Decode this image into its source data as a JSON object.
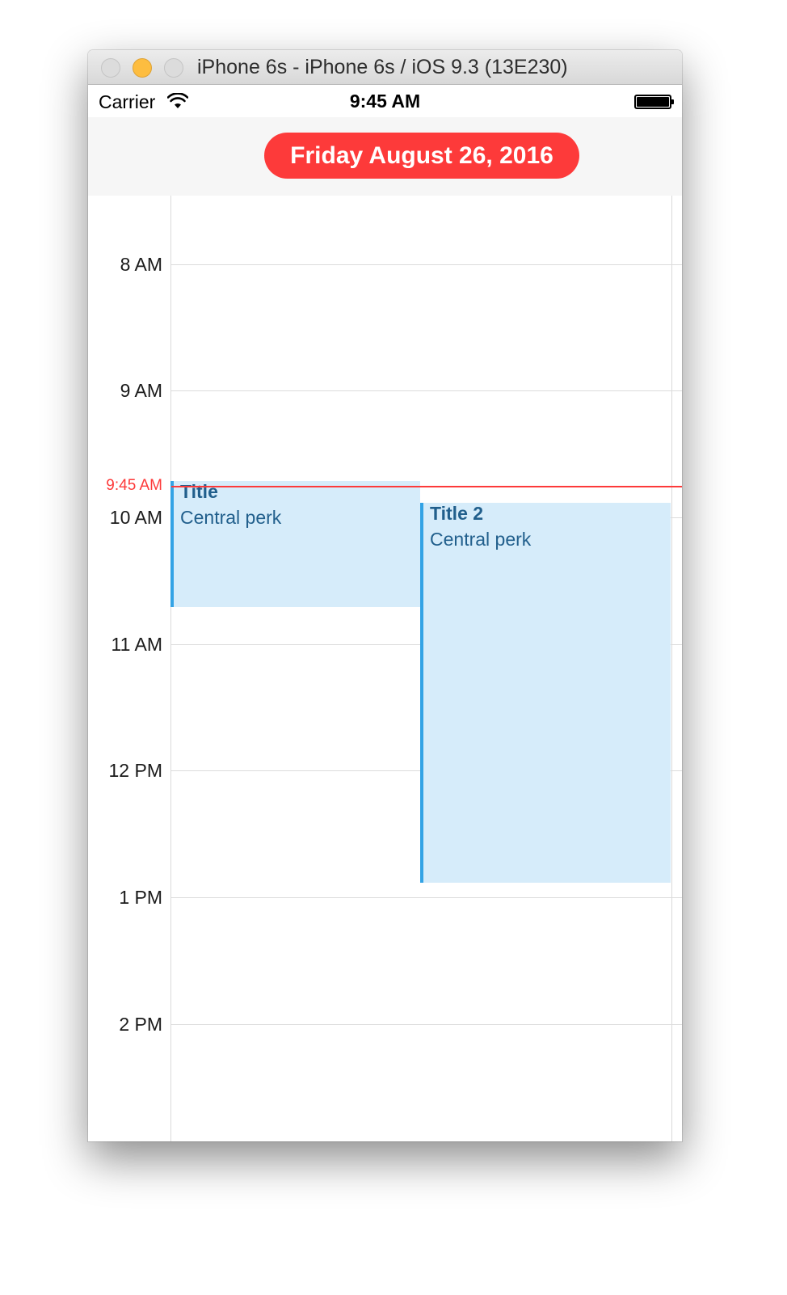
{
  "window": {
    "title": "iPhone 6s - iPhone 6s / iOS 9.3 (13E230)"
  },
  "statusbar": {
    "carrier": "Carrier",
    "time": "9:45 AM",
    "wifi_icon": "wifi-icon",
    "battery_icon": "battery-icon"
  },
  "header": {
    "date": "Friday August 26, 2016"
  },
  "day_view": {
    "hours": [
      "8 AM",
      "9 AM",
      "10 AM",
      "11 AM",
      "12 PM",
      "1 PM",
      "2 PM"
    ],
    "now_label": "9:45 AM",
    "events": [
      {
        "title": "Title",
        "location": "Central perk"
      },
      {
        "title": "Title 2",
        "location": "Central perk"
      }
    ]
  },
  "colors": {
    "accent": "#fd3a3a",
    "event_fill": "#d6ecfa",
    "event_border": "#33a3e5",
    "event_text": "#215f8c"
  }
}
